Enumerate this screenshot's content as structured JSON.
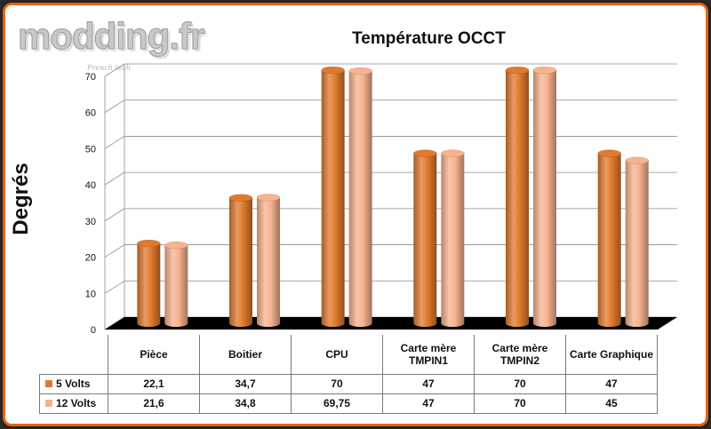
{
  "watermark": {
    "logo_text": "modding.fr",
    "tagline": "French tech"
  },
  "chart_data": {
    "type": "bar",
    "title": "Température OCCT",
    "ylabel": "Degrés",
    "xlabel": "",
    "ylim": [
      0,
      70
    ],
    "yticks": [
      0,
      10,
      20,
      30,
      40,
      50,
      60,
      70
    ],
    "grid": true,
    "style": "3d-cylinder",
    "categories": [
      "Pièce",
      "Boitier",
      "CPU",
      "Carte mère TMPIN1",
      "Carte mère TMPIN2",
      "Carte Graphique"
    ],
    "series": [
      {
        "name": "5 Volts",
        "color": "#e07a2e",
        "values": [
          22.1,
          34.7,
          70,
          47,
          70,
          47
        ]
      },
      {
        "name": "12 Volts",
        "color": "#f7b38f",
        "values": [
          21.6,
          34.8,
          69.75,
          47,
          70,
          45
        ]
      }
    ],
    "table": {
      "category_labels": [
        "Pièce",
        "Boitier",
        "CPU",
        "Carte mère TMPIN1",
        "Carte mère TMPIN2",
        "Carte Graphique"
      ],
      "rows": [
        {
          "label": "5 Volts",
          "cells": [
            "22,1",
            "34,7",
            "70",
            "47",
            "70",
            "47"
          ]
        },
        {
          "label": "12 Volts",
          "cells": [
            "21,6",
            "34,8",
            "69,75",
            "47",
            "70",
            "45"
          ]
        }
      ]
    },
    "floor_color": "#000000"
  }
}
